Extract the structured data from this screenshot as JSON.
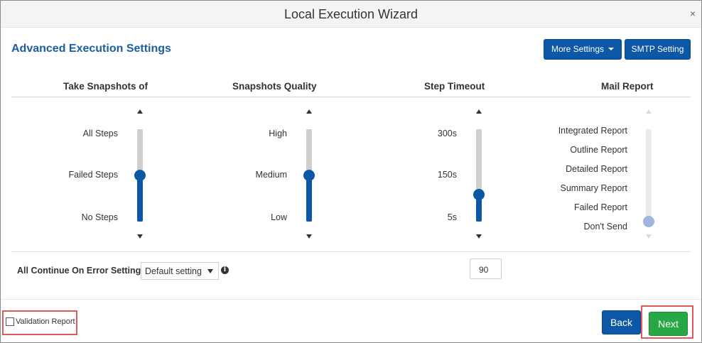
{
  "window": {
    "title": "Local Execution Wizard",
    "close_glyph": "×"
  },
  "section_title": "Advanced Execution Settings",
  "toolbar": {
    "more_settings_label": "More Settings",
    "smtp_setting_label": "SMTP Setting"
  },
  "columns": {
    "snapshots_of": {
      "header": "Take Snapshots of",
      "options": [
        "All Steps",
        "Failed Steps",
        "No Steps"
      ],
      "selected": "Failed Steps",
      "level_fraction": 0.5
    },
    "snapshots_quality": {
      "header": "Snapshots Quality",
      "options": [
        "High",
        "Medium",
        "Low"
      ],
      "selected": "Medium",
      "level_fraction": 0.5
    },
    "step_timeout": {
      "header": "Step Timeout",
      "options": [
        "300s",
        "150s",
        "5s"
      ],
      "value_seconds": 90,
      "level_fraction": 0.29
    },
    "mail_report": {
      "header": "Mail Report",
      "options": [
        "Integrated Report",
        "Outline Report",
        "Detailed Report",
        "Summary Report",
        "Failed Report",
        "Don't Send"
      ],
      "selected": "Don't Send",
      "level_fraction": 0,
      "disabled": true
    }
  },
  "continue_on_error": {
    "label": "All Continue On Error Settings",
    "selected": "Default setting",
    "info_glyph": "i"
  },
  "timeout_input": {
    "value": "90"
  },
  "footer": {
    "validation_label": "Validation Report",
    "validation_checked": false,
    "back_label": "Back",
    "next_label": "Next"
  },
  "colors": {
    "primary": "#0d58a6",
    "next": "#28a745",
    "highlight": "#e05a5a",
    "title_blue": "#1c5ea3"
  },
  "icons": {
    "close": "close-icon",
    "dropdown": "chevron-down-icon",
    "info": "info-icon",
    "up": "arrow-up-icon",
    "down": "arrow-down-icon"
  }
}
